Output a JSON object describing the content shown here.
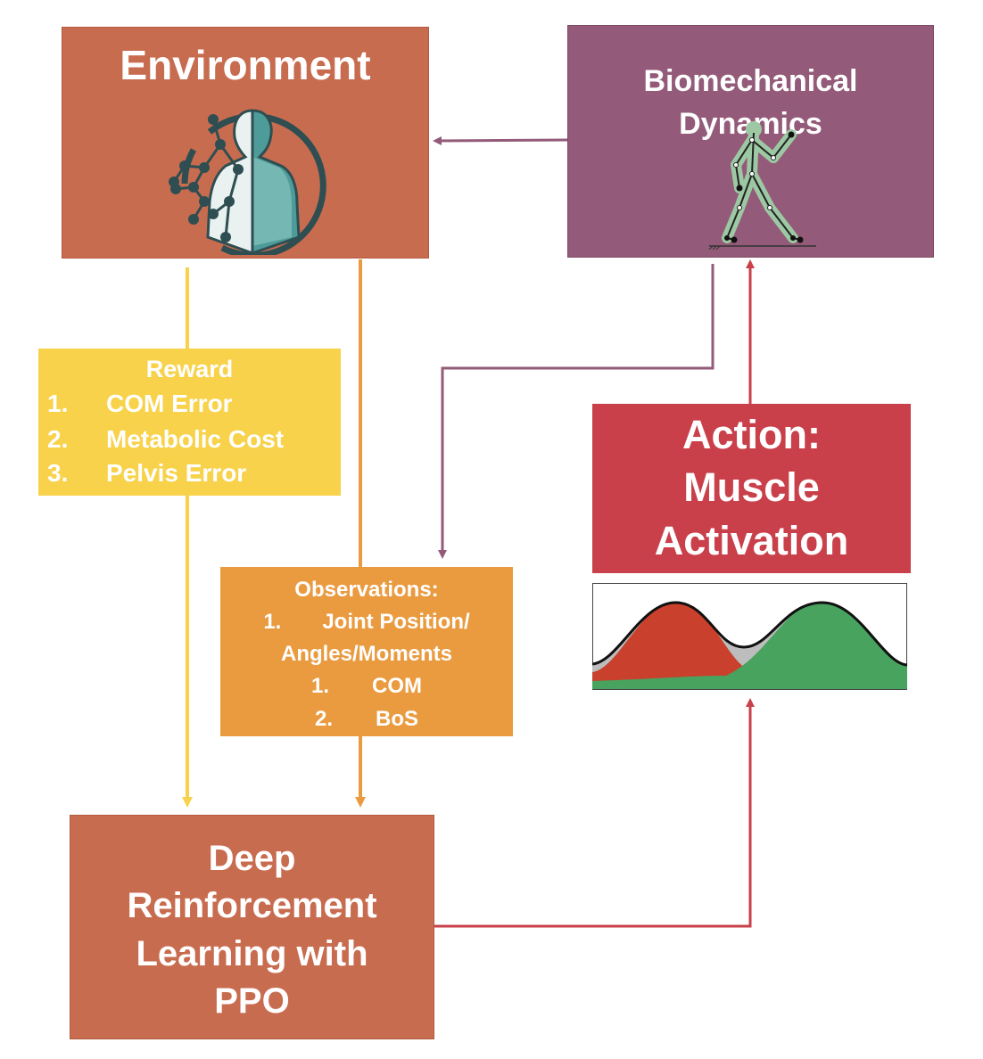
{
  "environment": {
    "title": "Environment"
  },
  "biomechanics": {
    "title_line1": "Biomechanical",
    "title_line2": "Dynamics"
  },
  "reward": {
    "heading": "Reward",
    "items": [
      {
        "num": "1.",
        "label": "COM Error"
      },
      {
        "num": "2.",
        "label": "Metabolic Cost"
      },
      {
        "num": "3.",
        "label": "Pelvis Error"
      }
    ]
  },
  "observations": {
    "heading": "Observations:",
    "items": [
      {
        "num": "1.",
        "label": "Joint Position/"
      },
      {
        "num": "",
        "label": "Angles/Moments"
      },
      {
        "num": "1.",
        "label": "COM"
      },
      {
        "num": "2.",
        "label": "BoS"
      }
    ]
  },
  "action": {
    "line1": "Action:",
    "line2": "Muscle",
    "line3": "Activation"
  },
  "drl": {
    "line1": "Deep",
    "line2": "Reinforcement",
    "line3": "Learning with",
    "line4": "PPO"
  },
  "colors": {
    "environment": "#C86C50",
    "biomechanics": "#935B79",
    "reward": "#F7D24A",
    "observations": "#EA9B40",
    "action": "#C9404A",
    "drl": "#C86C50",
    "arrow_purple": "#935B79",
    "arrow_yellow": "#F7D24A",
    "arrow_orange": "#EA9B40",
    "arrow_red": "#C9404A",
    "curve_red": "#C9402C",
    "curve_green": "#48A35E",
    "curve_blue": "#4EA6DA",
    "curve_grey": "#BDBDBD"
  },
  "icons": {
    "environment": "human-body-network-icon",
    "biomechanics": "walking-skeleton-icon",
    "activation": "muscle-activation-curves-icon"
  }
}
